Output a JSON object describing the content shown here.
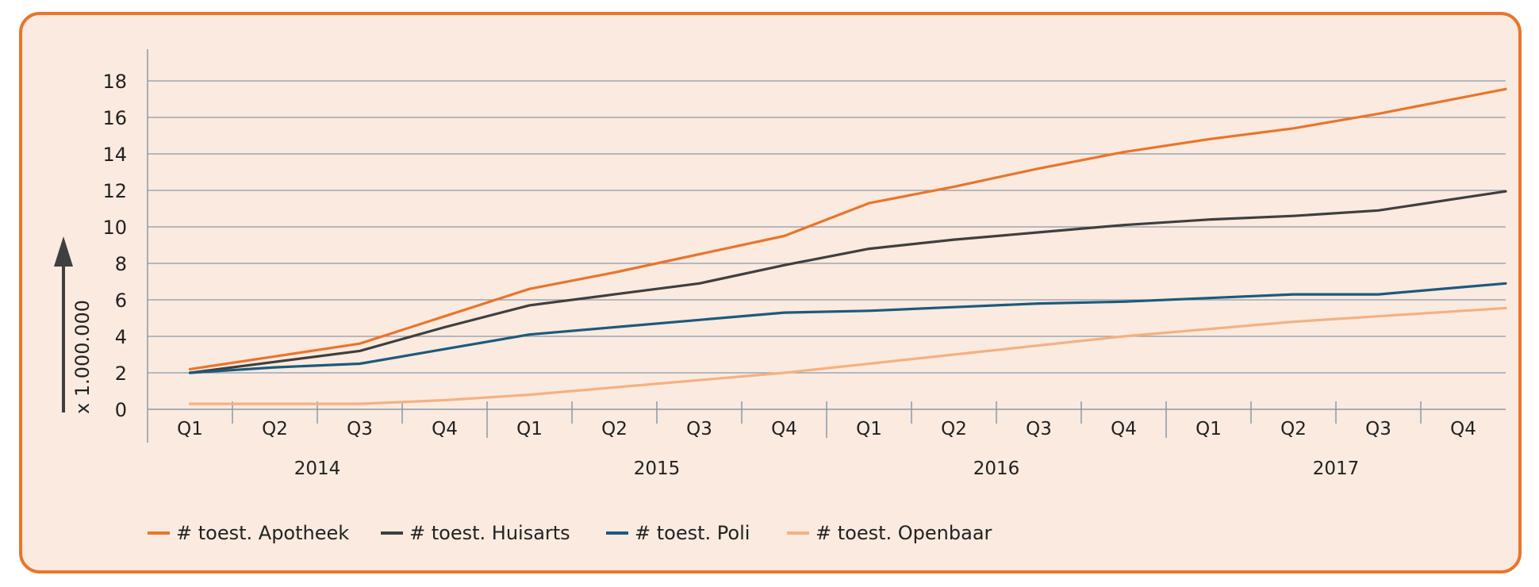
{
  "chart_data": {
    "type": "line",
    "title": "",
    "xlabel": "",
    "ylabel": "x 1.000.000",
    "ylim": [
      0,
      18
    ],
    "yticks": [
      0,
      2,
      4,
      6,
      8,
      10,
      12,
      14,
      16,
      18
    ],
    "grid": true,
    "legend_position": "bottom-left",
    "quarter_labels": [
      "Q1",
      "Q2",
      "Q3",
      "Q4",
      "Q1",
      "Q2",
      "Q3",
      "Q4",
      "Q1",
      "Q2",
      "Q3",
      "Q4",
      "Q1",
      "Q2",
      "Q3",
      "Q4"
    ],
    "years": [
      "2014",
      "2015",
      "2016",
      "2017"
    ],
    "series": [
      {
        "name": "# toest. Apotheek",
        "color": "#e8752c",
        "values": [
          2.2,
          2.9,
          3.6,
          5.1,
          6.6,
          7.5,
          8.5,
          9.5,
          11.3,
          12.2,
          13.2,
          14.1,
          14.8,
          15.4,
          16.2,
          17.1
        ]
      },
      {
        "name": "# toest. Huisarts",
        "color": "#3f3f3f",
        "values": [
          2.0,
          2.6,
          3.2,
          4.5,
          5.7,
          6.3,
          6.9,
          7.9,
          8.8,
          9.3,
          9.7,
          10.1,
          10.4,
          10.6,
          10.9,
          11.6
        ]
      },
      {
        "name": "# toest. Poli",
        "color": "#1c5a7d",
        "values": [
          2.0,
          2.3,
          2.5,
          3.3,
          4.1,
          4.5,
          4.9,
          5.3,
          5.4,
          5.6,
          5.8,
          5.9,
          6.1,
          6.3,
          6.3,
          6.7
        ]
      },
      {
        "name": "# toest. Openbaar",
        "color": "#f4b183",
        "values": [
          0.3,
          0.3,
          0.3,
          0.5,
          0.8,
          1.2,
          1.6,
          2.0,
          2.5,
          3.0,
          3.5,
          4.0,
          4.4,
          4.8,
          5.1,
          5.4
        ]
      }
    ]
  }
}
